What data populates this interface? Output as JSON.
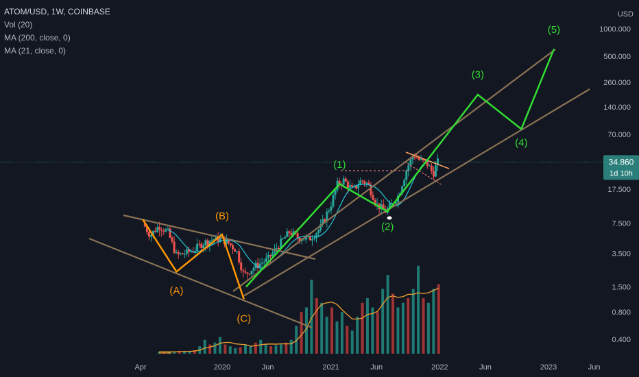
{
  "legend": {
    "symbol": "ATOM/USD, 1W, COINBASE",
    "vol": "Vol (20)",
    "ma200": "MA (200, close, 0)",
    "ma21": "MA (21, close, 0)"
  },
  "price_axis": {
    "currency": "USD",
    "current_price": "34.860",
    "countdown": "1d 10h"
  },
  "colors": {
    "background": "#131722",
    "up": "#26a69a",
    "down": "#ef5350",
    "vol_up": "#1e7a72",
    "vol_down": "#9e3434",
    "ma21": "#26c6da",
    "ma_vol": "#f0a030",
    "channel": "#8b7355",
    "wave_orange": "#ff9800",
    "wave_green": "#33dd33",
    "price_tag": "#2a7f7a"
  },
  "chart_data": {
    "type": "candlestick",
    "y_scale": "log",
    "ylim": [
      0.3,
      2000
    ],
    "x_ticks": [
      "Apr",
      "2020",
      "Jun",
      "2021",
      "Jun",
      "2022",
      "Jun",
      "2023",
      "Jun"
    ],
    "x_tick_dates": [
      2019.25,
      2020.0,
      2020.42,
      2021.0,
      2021.42,
      2022.0,
      2022.42,
      2023.0,
      2023.42
    ],
    "y_ticks": [
      {
        "label": "1000.000",
        "v": 1000
      },
      {
        "label": "500.000",
        "v": 500
      },
      {
        "label": "260.000",
        "v": 260
      },
      {
        "label": "140.000",
        "v": 140
      },
      {
        "label": "70.000",
        "v": 70
      },
      {
        "label": "17.500",
        "v": 17.5
      },
      {
        "label": "7.500",
        "v": 7.5
      },
      {
        "label": "3.500",
        "v": 3.5
      },
      {
        "label": "1.500",
        "v": 1.5
      },
      {
        "label": "0.800",
        "v": 0.8
      },
      {
        "label": "0.400",
        "v": 0.4
      }
    ],
    "current_value": 34.86,
    "price_path": [
      [
        2019.27,
        7.5
      ],
      [
        2019.34,
        5.5
      ],
      [
        2019.42,
        7.0
      ],
      [
        2019.5,
        6.0
      ],
      [
        2019.58,
        3.3
      ],
      [
        2019.66,
        3.5
      ],
      [
        2019.74,
        3.8
      ],
      [
        2019.82,
        4.5
      ],
      [
        2019.92,
        5.0
      ],
      [
        2020.0,
        5.0
      ],
      [
        2020.06,
        4.5
      ],
      [
        2020.13,
        3.8
      ],
      [
        2020.2,
        2.0
      ],
      [
        2020.3,
        2.5
      ],
      [
        2020.42,
        3.0
      ],
      [
        2020.52,
        4.3
      ],
      [
        2020.62,
        6.0
      ],
      [
        2020.7,
        5.2
      ],
      [
        2020.8,
        5.0
      ],
      [
        2020.9,
        6.5
      ],
      [
        2021.0,
        12.0
      ],
      [
        2021.06,
        20.0
      ],
      [
        2021.12,
        22.0
      ],
      [
        2021.2,
        17.0
      ],
      [
        2021.28,
        22.0
      ],
      [
        2021.34,
        20.0
      ],
      [
        2021.42,
        12.0
      ],
      [
        2021.5,
        10.0
      ],
      [
        2021.56,
        12.0
      ],
      [
        2021.62,
        15.0
      ],
      [
        2021.7,
        30.0
      ],
      [
        2021.76,
        42.0
      ],
      [
        2021.82,
        36.0
      ],
      [
        2021.88,
        34.0
      ],
      [
        2021.94,
        26.0
      ],
      [
        2021.98,
        34.86
      ]
    ],
    "volume_heights": [
      0.02,
      0.02,
      0.02,
      0.02,
      0.03,
      0.03,
      0.03,
      0.04,
      0.08,
      0.15,
      0.1,
      0.12,
      0.18,
      0.1,
      0.08,
      0.06,
      0.07,
      0.1,
      0.08,
      0.12,
      0.15,
      0.1,
      0.08,
      0.09,
      0.1,
      0.12,
      0.15,
      0.3,
      0.45,
      0.5,
      0.8,
      0.6,
      0.55,
      0.4,
      0.5,
      0.35,
      0.45,
      0.3,
      0.25,
      0.4,
      0.55,
      0.6,
      0.5,
      0.45,
      0.7,
      0.85,
      0.65,
      0.5,
      0.55,
      0.6,
      0.7,
      0.95,
      0.6,
      0.55,
      0.7,
      0.75
    ],
    "annotations": {
      "orange_waves": [
        {
          "label": "(A)",
          "t": 2019.58,
          "v": 2.2,
          "label_v": 1.25
        },
        {
          "label": "(B)",
          "t": 2020.0,
          "v": 5.6,
          "label_v": 8.2
        },
        {
          "label": "(C)",
          "t": 2020.2,
          "v": 1.1,
          "label_v": 0.62
        }
      ],
      "orange_start": {
        "t": 2019.27,
        "v": 8.2
      },
      "green_waves": [
        {
          "label": "(1)",
          "t": 2021.08,
          "v": 20.0,
          "label_v": 30.0
        },
        {
          "label": "(2)",
          "t": 2021.52,
          "v": 10.0,
          "label_v": 6.3
        },
        {
          "label": "(3)",
          "t": 2022.35,
          "v": 190,
          "label_v": 290
        },
        {
          "label": "(4)",
          "t": 2022.75,
          "v": 80,
          "label_v": 52
        },
        {
          "label": "(5)",
          "t": 2023.05,
          "v": 600,
          "label_v": 900
        }
      ],
      "green_start": {
        "t": 2020.22,
        "v": 1.5
      }
    }
  }
}
